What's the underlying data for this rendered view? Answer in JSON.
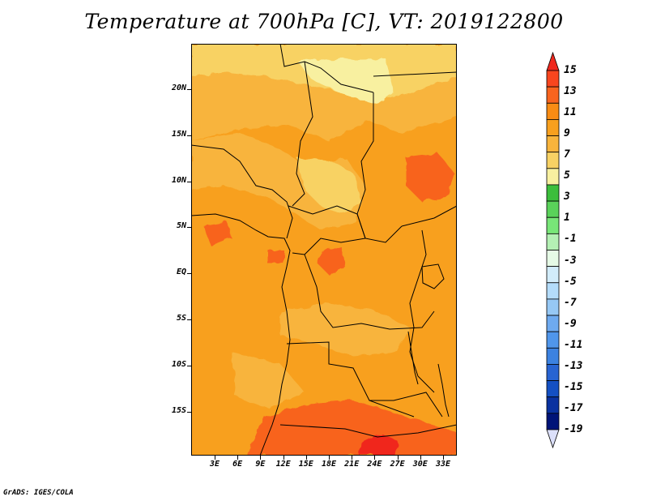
{
  "title": "Temperature at 700hPa [C], VT: 2019122800",
  "credit": "GrADS: IGES/COLA",
  "lat_labels": [
    "20N",
    "15N",
    "10N",
    "5N",
    "EQ",
    "5S",
    "10S",
    "15S"
  ],
  "lon_labels": [
    "3E",
    "6E",
    "9E",
    "12E",
    "15E",
    "18E",
    "21E",
    "24E",
    "27E",
    "30E",
    "33E"
  ],
  "colorbar": {
    "labels": [
      "15",
      "13",
      "11",
      "9",
      "7",
      "5",
      "3",
      "1",
      "-1",
      "-3",
      "-5",
      "-7",
      "-9",
      "-11",
      "-13",
      "-15",
      "-17",
      "-19"
    ],
    "colors": [
      "#f0281e",
      "#f8461e",
      "#f8641e",
      "#f88c14",
      "#f8a01e",
      "#f8b43c",
      "#f8d264",
      "#f8f0a0",
      "#3cbe3c",
      "#5ad25a",
      "#78e678",
      "#b4f0b4",
      "#e6fae6",
      "#d2ecfa",
      "#b4dcfa",
      "#96c8f5",
      "#6eaaf0",
      "#5096eb",
      "#3c82e1",
      "#2864d2",
      "#1450c3",
      "#0a32a0",
      "#001478",
      "#dce0fa"
    ]
  },
  "field": {
    "background": "#f8a01e",
    "zones": {
      "warm": "#f8641e",
      "hot": "#f0281e",
      "mild": "#f8b43c",
      "cool": "#f8d264",
      "coolest": "#f8f0a0"
    }
  }
}
